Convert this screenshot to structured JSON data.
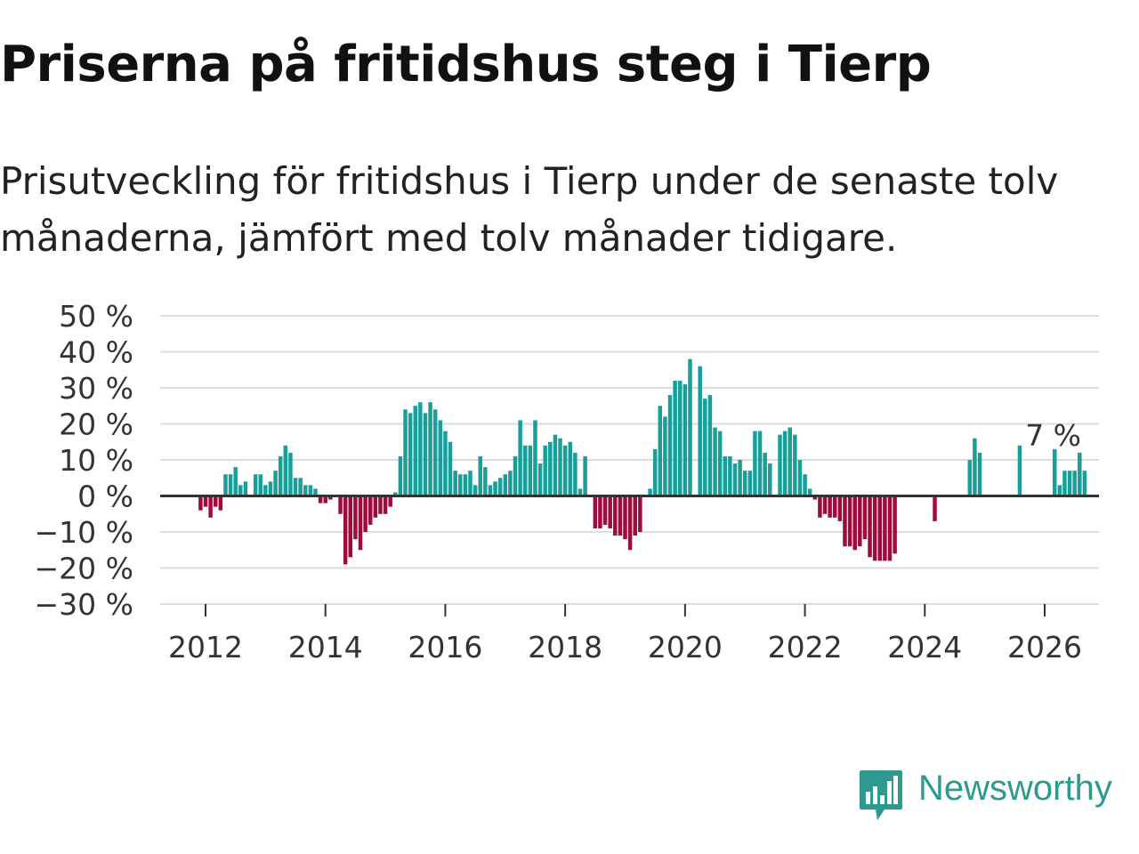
{
  "title": "Priserna på fritidshus steg i Tierp",
  "subtitle": "Prisutveckling för fritidshus i Tierp under de senaste tolv månaderna, jämfört med tolv månader tidigare.",
  "brand": "Newsworthy",
  "colors": {
    "positive": "#17a09a",
    "negative": "#9e0b3c",
    "grid": "#dcdcdc",
    "zero": "#333333",
    "brand": "#2e9a8f"
  },
  "chart_data": {
    "type": "bar",
    "title": "Priserna på fritidshus steg i Tierp",
    "ylabel": "",
    "xlabel": "",
    "ylim": [
      -30,
      50
    ],
    "yticks": [
      50,
      40,
      30,
      20,
      10,
      0,
      -10,
      -20,
      -30
    ],
    "ytick_labels": [
      "50 %",
      "40 %",
      "30 %",
      "20 %",
      "10 %",
      "0 %",
      "−10 %",
      "−20 %",
      "−30 %"
    ],
    "xticks": [
      "2012",
      "2014",
      "2016",
      "2018",
      "2020",
      "2022",
      "2024",
      "2026"
    ],
    "x_start": "2011-12",
    "annotation": {
      "text": "7 %",
      "month": "2026-02",
      "value": 7
    },
    "values": [
      -4,
      -3,
      -6,
      -3,
      -4,
      6,
      6,
      8,
      3,
      4,
      null,
      6,
      6,
      3,
      4,
      7,
      11,
      14,
      12,
      5,
      5,
      3,
      3,
      2,
      -2,
      -2,
      -1,
      null,
      -5,
      -19,
      -17,
      -12,
      -15,
      -10,
      -8,
      -6,
      -5,
      -5,
      -3,
      1,
      11,
      24,
      23,
      25,
      26,
      23,
      26,
      24,
      21,
      18,
      15,
      7,
      6,
      6,
      7,
      3,
      11,
      8,
      3,
      4,
      5,
      6,
      7,
      11,
      21,
      14,
      14,
      21,
      9,
      14,
      15,
      17,
      16,
      14,
      15,
      12,
      2,
      11,
      null,
      -9,
      -9,
      -8,
      -9,
      -11,
      -11,
      -12,
      -15,
      -11,
      -10,
      null,
      2,
      13,
      25,
      22,
      28,
      32,
      32,
      31,
      38,
      null,
      36,
      27,
      28,
      19,
      18,
      11,
      11,
      9,
      10,
      7,
      7,
      18,
      18,
      12,
      9,
      null,
      17,
      18,
      19,
      17,
      10,
      6,
      2,
      -1,
      -6,
      -5,
      -6,
      -6,
      -7,
      -14,
      -14,
      -15,
      -14,
      -12,
      -17,
      -18,
      -18,
      -18,
      -18,
      -16,
      null,
      null,
      null,
      null,
      null,
      null,
      null,
      -7,
      null,
      null,
      null,
      null,
      null,
      null,
      10,
      16,
      12,
      null,
      null,
      null,
      null,
      null,
      null,
      null,
      14,
      null,
      null,
      null,
      null,
      null,
      null,
      13,
      3,
      7,
      7,
      7,
      12,
      7
    ]
  }
}
